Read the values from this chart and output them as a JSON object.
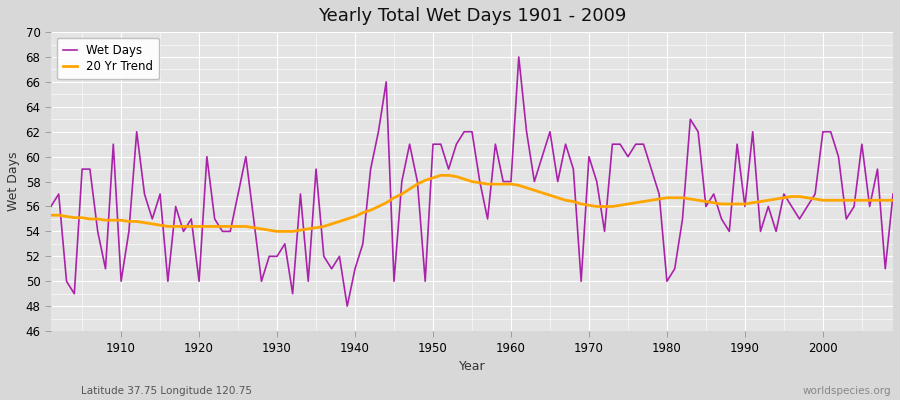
{
  "title": "Yearly Total Wet Days 1901 - 2009",
  "xlabel": "Year",
  "ylabel": "Wet Days",
  "subtitle": "Latitude 37.75 Longitude 120.75",
  "watermark": "worldspecies.org",
  "ylim": [
    46,
    70
  ],
  "xlim": [
    1901,
    2009
  ],
  "wet_days_color": "#AA22AA",
  "trend_color": "#FFA500",
  "bg_color": "#D8D8D8",
  "plot_bg_color": "#E4E4E4",
  "grid_color": "#FFFFFF",
  "years": [
    1901,
    1902,
    1903,
    1904,
    1905,
    1906,
    1907,
    1908,
    1909,
    1910,
    1911,
    1912,
    1913,
    1914,
    1915,
    1916,
    1917,
    1918,
    1919,
    1920,
    1921,
    1922,
    1923,
    1924,
    1925,
    1926,
    1927,
    1928,
    1929,
    1930,
    1931,
    1932,
    1933,
    1934,
    1935,
    1936,
    1937,
    1938,
    1939,
    1940,
    1941,
    1942,
    1943,
    1944,
    1945,
    1946,
    1947,
    1948,
    1949,
    1950,
    1951,
    1952,
    1953,
    1954,
    1955,
    1956,
    1957,
    1958,
    1959,
    1960,
    1961,
    1962,
    1963,
    1964,
    1965,
    1966,
    1967,
    1968,
    1969,
    1970,
    1971,
    1972,
    1973,
    1974,
    1975,
    1976,
    1977,
    1978,
    1979,
    1980,
    1981,
    1982,
    1983,
    1984,
    1985,
    1986,
    1987,
    1988,
    1989,
    1990,
    1991,
    1992,
    1993,
    1994,
    1995,
    1996,
    1997,
    1998,
    1999,
    2000,
    2001,
    2002,
    2003,
    2004,
    2005,
    2006,
    2007,
    2008,
    2009
  ],
  "wet_days": [
    56,
    57,
    50,
    49,
    59,
    59,
    54,
    51,
    61,
    50,
    54,
    62,
    57,
    55,
    57,
    50,
    56,
    54,
    55,
    50,
    60,
    55,
    54,
    54,
    57,
    60,
    55,
    50,
    52,
    52,
    53,
    49,
    57,
    50,
    59,
    52,
    51,
    52,
    48,
    51,
    53,
    59,
    62,
    66,
    50,
    58,
    61,
    58,
    50,
    61,
    61,
    59,
    61,
    62,
    62,
    58,
    55,
    61,
    58,
    58,
    68,
    62,
    58,
    60,
    62,
    58,
    61,
    59,
    50,
    60,
    58,
    54,
    61,
    61,
    60,
    61,
    61,
    59,
    57,
    50,
    51,
    55,
    63,
    62,
    56,
    57,
    55,
    54,
    61,
    56,
    62,
    54,
    56,
    54,
    57,
    56,
    55,
    56,
    57,
    62,
    62,
    60,
    55,
    56,
    61,
    56,
    59,
    51,
    57
  ],
  "trend": [
    55.3,
    55.3,
    55.2,
    55.1,
    55.1,
    55.0,
    55.0,
    54.9,
    54.9,
    54.9,
    54.8,
    54.8,
    54.7,
    54.6,
    54.5,
    54.4,
    54.4,
    54.4,
    54.4,
    54.4,
    54.4,
    54.4,
    54.4,
    54.4,
    54.4,
    54.4,
    54.3,
    54.2,
    54.1,
    54.0,
    54.0,
    54.0,
    54.1,
    54.2,
    54.3,
    54.4,
    54.6,
    54.8,
    55.0,
    55.2,
    55.5,
    55.7,
    56.0,
    56.3,
    56.7,
    57.0,
    57.4,
    57.8,
    58.1,
    58.3,
    58.5,
    58.5,
    58.4,
    58.2,
    58.0,
    57.9,
    57.8,
    57.8,
    57.8,
    57.8,
    57.7,
    57.5,
    57.3,
    57.1,
    56.9,
    56.7,
    56.5,
    56.4,
    56.2,
    56.1,
    56.0,
    56.0,
    56.0,
    56.1,
    56.2,
    56.3,
    56.4,
    56.5,
    56.6,
    56.7,
    56.7,
    56.7,
    56.6,
    56.5,
    56.4,
    56.3,
    56.2,
    56.2,
    56.2,
    56.2,
    56.3,
    56.4,
    56.5,
    56.6,
    56.7,
    56.8,
    56.8,
    56.7,
    56.6,
    56.5,
    56.5,
    56.5,
    56.5,
    56.5,
    56.5,
    56.5,
    56.5,
    56.5,
    56.5
  ]
}
